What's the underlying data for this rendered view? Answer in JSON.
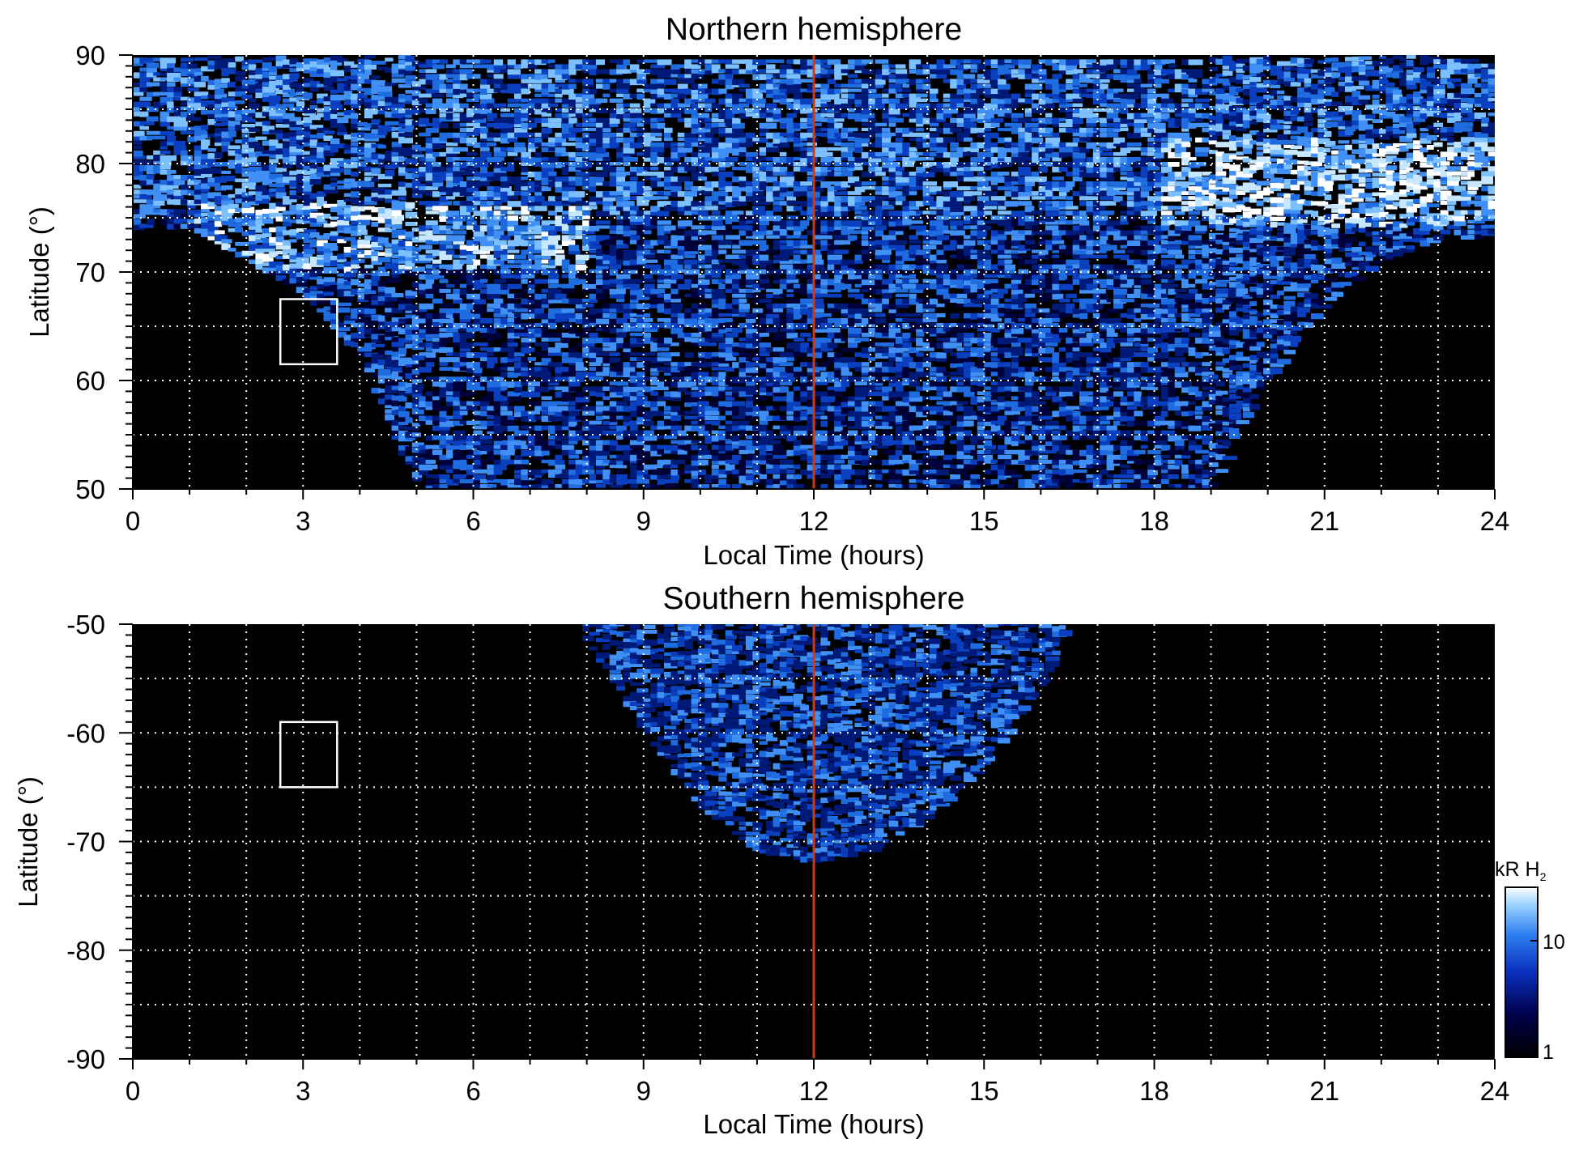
{
  "chart_data": [
    {
      "type": "heatmap",
      "panel": "north",
      "title": "Northern hemisphere",
      "xlabel": "Local Time (hours)",
      "ylabel": "Latitude (°)",
      "xlim": [
        0,
        24
      ],
      "ylim": [
        50,
        90
      ],
      "xticks": [
        0,
        3,
        6,
        9,
        12,
        15,
        18,
        21,
        24
      ],
      "yticks": [
        50,
        60,
        70,
        80,
        90
      ],
      "xticklabels": [
        "0",
        "3",
        "6",
        "9",
        "12",
        "15",
        "18",
        "21",
        "24"
      ],
      "yticklabels": [
        "50",
        "60",
        "70",
        "80",
        "90"
      ],
      "grid": true,
      "grid_x_step": 1,
      "grid_y_step": 5,
      "noon_line_x": 12,
      "noon_line_color": "#d03a12",
      "box": {
        "x0": 2.6,
        "x1": 3.6,
        "y0": 61.5,
        "y1": 67.5
      },
      "coverage_boundary_lat_by_lt": [
        [
          0,
          74
        ],
        [
          1,
          74
        ],
        [
          2,
          71
        ],
        [
          3,
          68
        ],
        [
          4,
          62
        ],
        [
          5,
          50
        ],
        [
          19,
          50
        ],
        [
          20,
          60
        ],
        [
          21,
          67
        ],
        [
          22,
          71
        ],
        [
          23,
          73
        ],
        [
          24,
          73
        ]
      ],
      "bright_bands": [
        {
          "lt_start": 1,
          "lt_end": 8,
          "lat_center": 73,
          "lat_width": 3
        },
        {
          "lt_start": 18,
          "lt_end": 24,
          "lat_center": 78,
          "lat_width": 4
        }
      ]
    },
    {
      "type": "heatmap",
      "panel": "south",
      "title": "Southern hemisphere",
      "xlabel": "Local Time (hours)",
      "ylabel": "Latitude (°)",
      "xlim": [
        0,
        24
      ],
      "ylim": [
        -90,
        -50
      ],
      "xticks": [
        0,
        3,
        6,
        9,
        12,
        15,
        18,
        21,
        24
      ],
      "yticks": [
        -90,
        -80,
        -70,
        -60,
        -50
      ],
      "xticklabels": [
        "0",
        "3",
        "6",
        "9",
        "12",
        "15",
        "18",
        "21",
        "24"
      ],
      "yticklabels": [
        "-90",
        "-80",
        "-70",
        "-60",
        "-50"
      ],
      "grid": true,
      "grid_x_step": 1,
      "grid_y_step": 5,
      "noon_line_x": 12,
      "noon_line_color": "#d03a12",
      "box": {
        "x0": 2.6,
        "x1": 3.6,
        "y0": -65,
        "y1": -59
      },
      "coverage_boundary_lat_by_lt": [
        [
          7.8,
          -50
        ],
        [
          9,
          -60
        ],
        [
          10,
          -67
        ],
        [
          11,
          -71
        ],
        [
          12,
          -72
        ],
        [
          13,
          -71
        ],
        [
          14,
          -68
        ],
        [
          15,
          -63
        ],
        [
          16,
          -56
        ],
        [
          16.5,
          -50
        ]
      ]
    }
  ],
  "colorbar": {
    "label": "kR H",
    "label_subscript": "2",
    "tick_labels": [
      "10",
      "1"
    ],
    "tick_values": [
      10,
      1
    ],
    "scale": "log",
    "range": [
      1,
      25
    ],
    "colors": [
      "#000000",
      "#00004a",
      "#0a2fbd",
      "#2c7ff0",
      "#9cd4ff",
      "#ffffff"
    ]
  }
}
